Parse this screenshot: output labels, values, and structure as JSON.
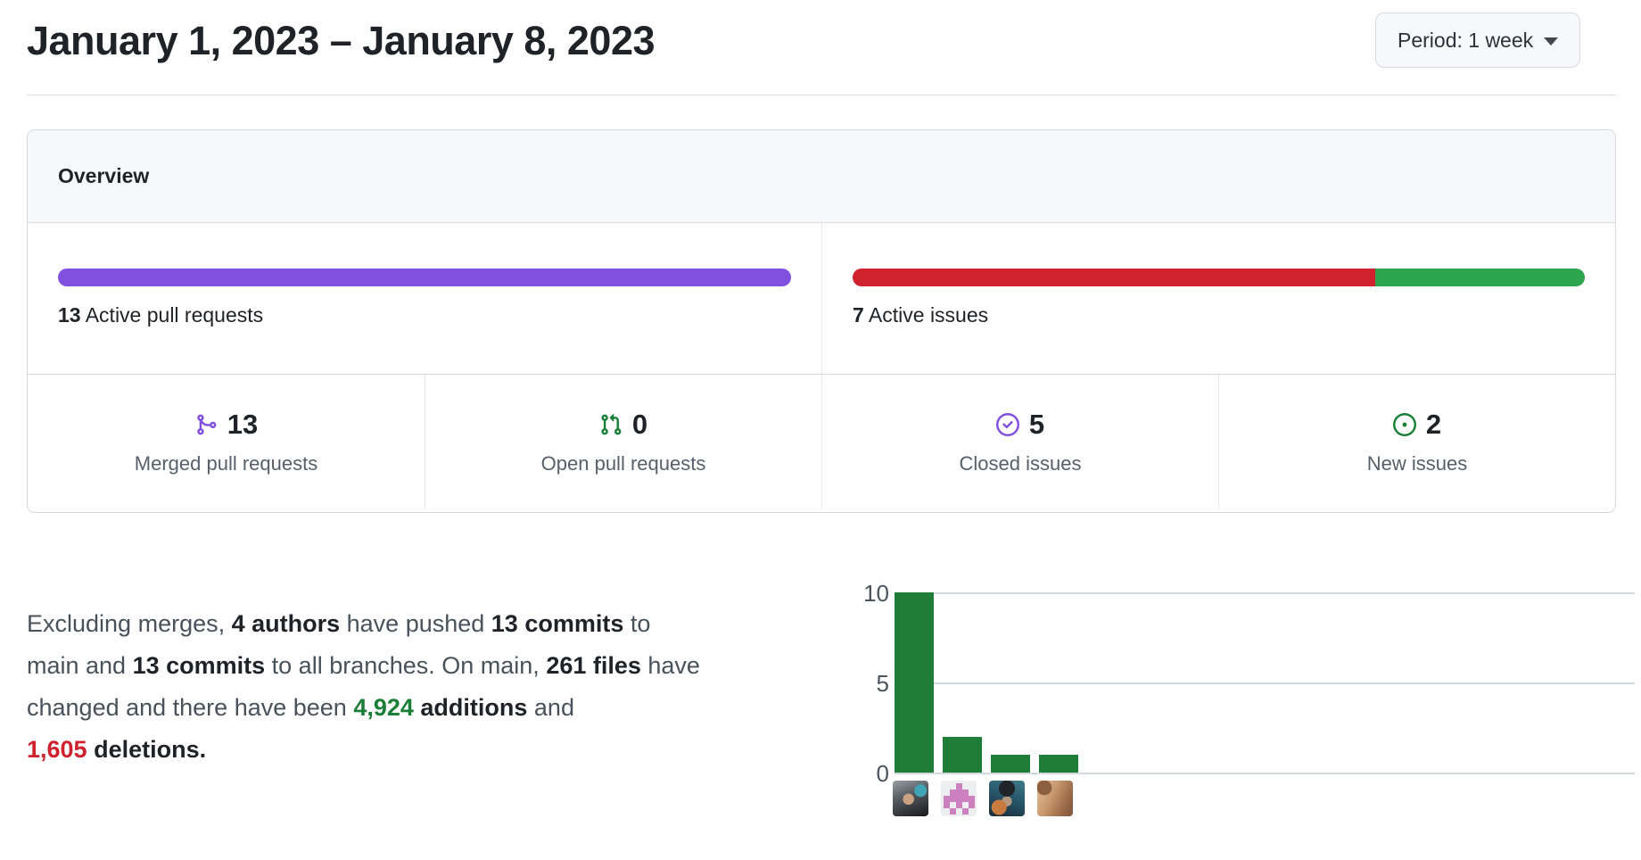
{
  "header": {
    "title": "January 1, 2023 – January 8, 2023",
    "period_button": {
      "label": "Period: 1 week"
    }
  },
  "overview": {
    "title": "Overview",
    "active_pull_requests": {
      "count": "13",
      "label": "Active pull requests",
      "color": "#8250df"
    },
    "active_issues": {
      "count": "7",
      "label": "Active issues",
      "segments": [
        {
          "name": "closed",
          "value": 5,
          "color": "#cf222e"
        },
        {
          "name": "new",
          "value": 2,
          "color": "#2da44e"
        }
      ]
    },
    "stats": [
      {
        "icon": "git-merge-icon",
        "value": "13",
        "label": "Merged pull requests",
        "icon_color": "#8250df"
      },
      {
        "icon": "git-pull-request-icon",
        "value": "0",
        "label": "Open pull requests",
        "icon_color": "#1a7f37"
      },
      {
        "icon": "issue-closed-icon",
        "value": "5",
        "label": "Closed issues",
        "icon_color": "#8250df"
      },
      {
        "icon": "issue-opened-icon",
        "value": "2",
        "label": "New issues",
        "icon_color": "#1a7f37"
      }
    ]
  },
  "summary": {
    "lines": [
      [
        {
          "t": "Excluding merges, "
        },
        {
          "t": "4 authors",
          "b": true
        },
        {
          "t": " have pushed "
        },
        {
          "t": "13 commits",
          "b": true
        },
        {
          "t": " to"
        }
      ],
      [
        {
          "t": "main and "
        },
        {
          "t": "13 commits",
          "b": true
        },
        {
          "t": " to all branches. On main, "
        },
        {
          "t": "261 files",
          "b": true
        },
        {
          "t": " have"
        }
      ],
      [
        {
          "t": "changed and there have been "
        },
        {
          "t": "4,924",
          "b": true,
          "tone": "additions"
        },
        {
          "t": " "
        },
        {
          "t": "additions",
          "b": true
        },
        {
          "t": " and"
        }
      ],
      [
        {
          "t": "1,605",
          "b": true,
          "tone": "deletions"
        },
        {
          "t": " "
        },
        {
          "t": "deletions.",
          "b": true
        }
      ]
    ],
    "colors": {
      "additions": "#1a7f37",
      "deletions": "#cf222e"
    }
  },
  "chart_data": {
    "type": "bar",
    "title": "Commits per author (avatars as x-axis categories)",
    "categories": [
      "author-avatar-1",
      "author-avatar-2",
      "author-avatar-3",
      "author-avatar-4"
    ],
    "values": [
      10,
      2,
      1,
      1
    ],
    "yticks": [
      0,
      5,
      10
    ],
    "ylim": [
      0,
      10
    ],
    "bar_color": "#1f7d38",
    "grid": "horizontal",
    "legend_position": "none",
    "xlabel": "",
    "ylabel": ""
  }
}
